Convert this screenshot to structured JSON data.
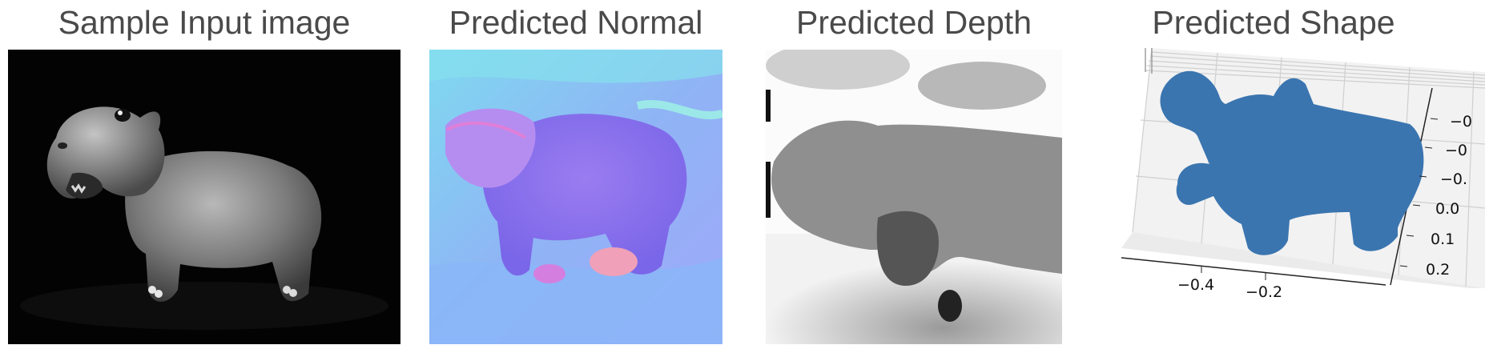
{
  "panels": [
    {
      "id": "input",
      "title": "Sample Input image"
    },
    {
      "id": "normal",
      "title": "Predicted Normal"
    },
    {
      "id": "depth",
      "title": "Predicted Depth"
    },
    {
      "id": "shape",
      "title": "Predicted Shape"
    }
  ],
  "shape_plot": {
    "point_color": "#3a75b0",
    "pane_color": "#f2f2f2",
    "grid_color": "#cfcfcf",
    "right_axis_ticks": [
      "−0",
      "−0",
      "−0.",
      "0.0",
      "0.1",
      "0.2"
    ],
    "bottom_axis_ticks": [
      "−0.4",
      "−0.2"
    ]
  }
}
